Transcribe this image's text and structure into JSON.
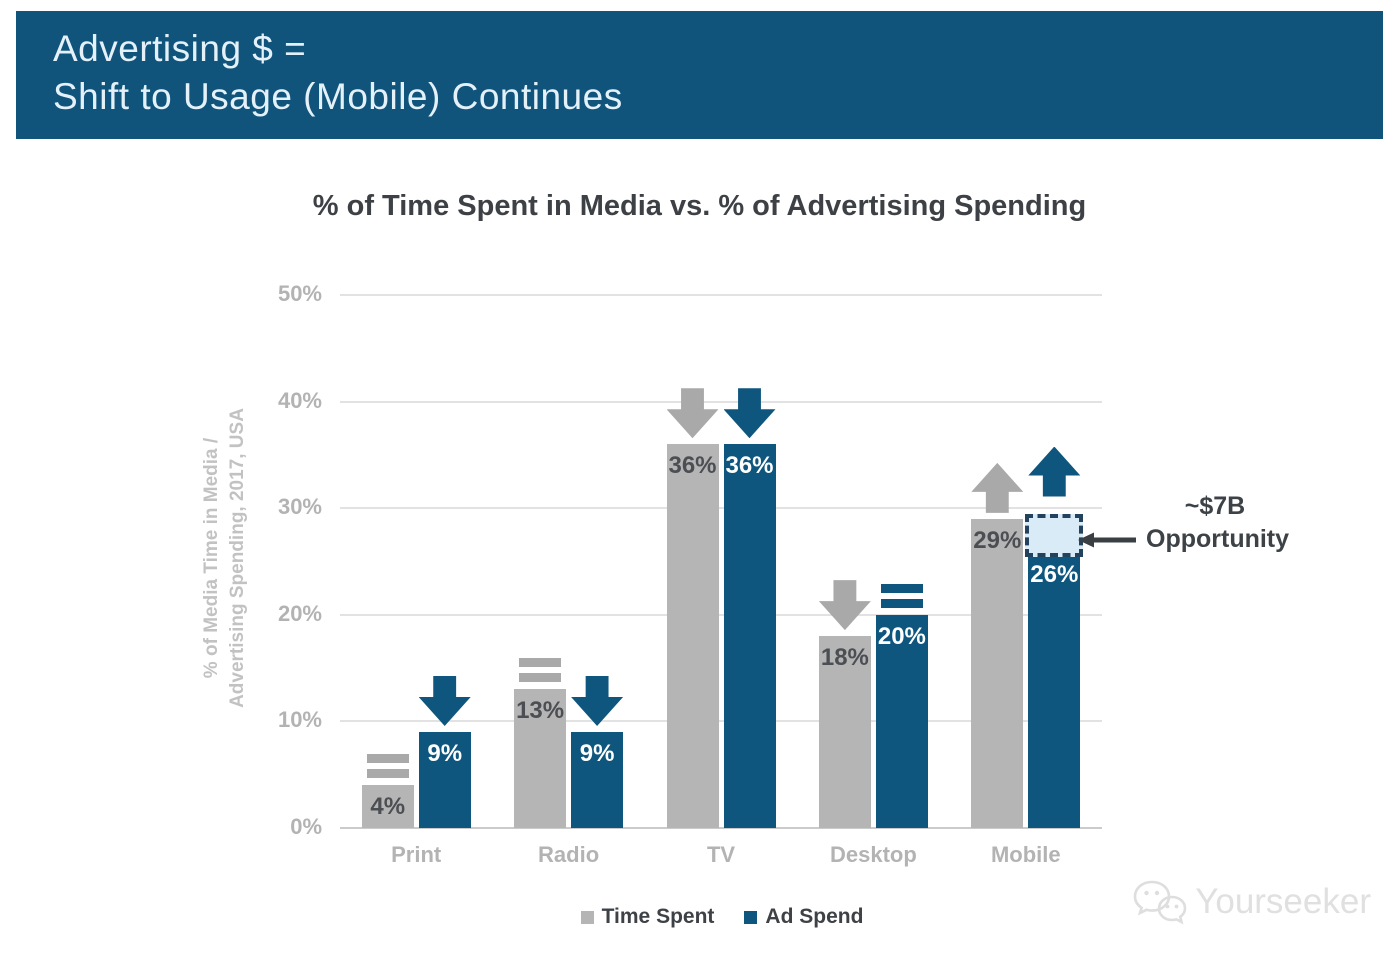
{
  "header": {
    "line1": "Advertising $ =",
    "line2": "Shift to Usage (Mobile) Continues"
  },
  "chart_data": {
    "type": "bar",
    "title": "% of Time Spent in Media vs. % of Advertising Spending",
    "ylabel": "% of Media Time in Media /\nAdvertising Spending, 2017, USA",
    "ylim": [
      0,
      50
    ],
    "yticks": [
      0,
      10,
      20,
      30,
      40,
      50
    ],
    "ytick_suffix": "%",
    "grid": true,
    "legend_position": "bottom",
    "categories": [
      "Print",
      "Radio",
      "TV",
      "Desktop",
      "Mobile"
    ],
    "series": [
      {
        "name": "Time Spent",
        "color": "#b5b5b5",
        "label_color": "#4b4e52",
        "trend_color": "#a9a9a9",
        "values": [
          4,
          13,
          36,
          18,
          29
        ],
        "labels": [
          "4%",
          "13%",
          "36%",
          "18%",
          "29%"
        ],
        "trend": [
          "equal",
          "equal",
          "down",
          "down",
          "up"
        ]
      },
      {
        "name": "Ad Spend",
        "color": "#0f567e",
        "label_color": "#ffffff",
        "trend_color": "#0f567e",
        "values": [
          9,
          9,
          36,
          20,
          26
        ],
        "labels": [
          "9%",
          "9%",
          "36%",
          "20%",
          "26%"
        ],
        "trend": [
          "down",
          "down",
          "down",
          "equal",
          "up"
        ]
      }
    ],
    "opportunity_box": {
      "category": "Mobile",
      "series": "Ad Spend",
      "top_value": 29.5,
      "fill": "#d9ebf7",
      "border": "#23425e"
    },
    "annotation": {
      "line1": "~$7B",
      "line2": "Opportunity"
    }
  },
  "colors": {
    "header_bg": "#10547c",
    "header_text": "#e4f1f9",
    "title_text": "#3d4145",
    "axis_text": "#b3b3b3",
    "grid_line": "#e2e2e2",
    "baseline": "#cbcbcb",
    "annotation_text": "#3d4247",
    "legend_text": "#3e4246"
  },
  "watermark": {
    "text": "Yourseeker"
  }
}
